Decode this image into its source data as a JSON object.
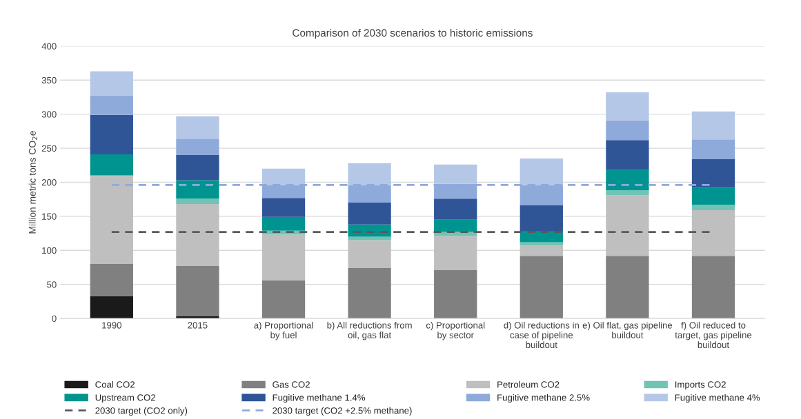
{
  "chart_data": {
    "type": "bar",
    "stacked": true,
    "title": "Comparison of 2030 scenarios to historic emissions",
    "ylabel": "Million metric tons CO$_{2}$e",
    "categories": [
      "1990",
      "2015",
      "a) Proportional\nby fuel",
      "b) All reductions from\noil, gas flat",
      "c) Proportional\nby sector",
      "d) Oil reductions in\ncase of pipeline\nbuildout",
      "e) Oil flat, gas pipeline\nbuildout",
      "f) Oil reduced to\ntarget, gas pipeline\nbuildout"
    ],
    "series": [
      {
        "name": "Coal CO2",
        "color": "#1a1a1a",
        "values": [
          33,
          3,
          0,
          0,
          0,
          0,
          0,
          0
        ]
      },
      {
        "name": "Gas CO2",
        "color": "#808080",
        "values": [
          47,
          74,
          56,
          74,
          71,
          92,
          92,
          92
        ]
      },
      {
        "name": "Petroleum CO2",
        "color": "#bfbfbf",
        "values": [
          129,
          91,
          67,
          41,
          50,
          15,
          89,
          67
        ]
      },
      {
        "name": "Imports CO2",
        "color": "#70c4b4",
        "values": [
          1,
          8,
          6,
          5,
          6,
          5,
          7,
          8
        ]
      },
      {
        "name": "Upstream CO2",
        "color": "#009490",
        "values": [
          31,
          27,
          20,
          18,
          18,
          15,
          30,
          25
        ]
      },
      {
        "name": "Fugitive methane 1.4%",
        "color": "#2f5597",
        "values": [
          58,
          37,
          28,
          32,
          31,
          39,
          44,
          42
        ]
      },
      {
        "name": "Fugitive methane 2.5%",
        "color": "#8eaadb",
        "values": [
          28,
          24,
          19,
          26,
          22,
          30,
          29,
          29
        ]
      },
      {
        "name": "Fugitive methane 4%",
        "color": "#b4c7e7",
        "values": [
          36,
          33,
          24,
          32,
          28,
          39,
          41,
          41
        ]
      }
    ],
    "ref_lines": [
      {
        "axis": "y",
        "value": 127,
        "label": "2030 target (CO2 only)",
        "color": "#595959",
        "line_style": "dashed"
      },
      {
        "axis": "y",
        "value": 196,
        "label": "2030 target (CO2 +2.5% methane)",
        "color": "#8faadc",
        "line_style": "dashed"
      }
    ],
    "ylim": [
      0,
      400
    ],
    "yticks": [
      0,
      50,
      100,
      150,
      200,
      250,
      300,
      350,
      400
    ],
    "grid": "y",
    "legend": "bottom"
  }
}
